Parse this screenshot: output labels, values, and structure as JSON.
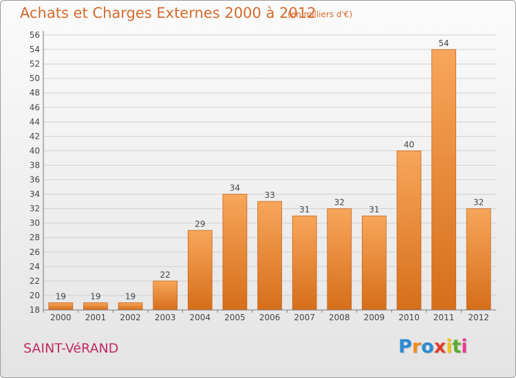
{
  "header": {
    "title": "Achats et Charges Externes 2000 à 2012",
    "subtitle": "(en milliers d'€)"
  },
  "footer": {
    "city": "SAINT-VéRAND",
    "logo": {
      "letters": [
        "P",
        "r",
        "o",
        "x",
        "i",
        "t",
        "i"
      ],
      "colors": [
        "#2a8ad4",
        "#f28c1e",
        "#2a8ad4",
        "#e43a2a",
        "#f2c018",
        "#5aae2e",
        "#e83a8c"
      ]
    }
  },
  "colors": {
    "bar_top": "#f7a65a",
    "bar_bottom": "#d66e1a",
    "bar_edge": "#c5651c",
    "title": "#d46a2c",
    "grid": "#cfcfcf",
    "city": "#c02a62"
  },
  "chart_data": {
    "type": "bar",
    "categories": [
      "2000",
      "2001",
      "2002",
      "2003",
      "2004",
      "2005",
      "2006",
      "2007",
      "2008",
      "2009",
      "2010",
      "2011",
      "2012"
    ],
    "values": [
      19,
      19,
      19,
      22,
      29,
      34,
      33,
      31,
      32,
      31,
      40,
      54,
      32
    ],
    "data_labels": [
      "19",
      "19",
      "19",
      "22",
      "29",
      "34",
      "33",
      "31",
      "32",
      "31",
      "40",
      "54",
      "32"
    ],
    "y_ticks": [
      "18",
      "20",
      "22",
      "24",
      "26",
      "28",
      "30",
      "32",
      "34",
      "36",
      "38",
      "40",
      "42",
      "44",
      "46",
      "48",
      "50",
      "52",
      "54",
      "56"
    ],
    "ylim": [
      18,
      56
    ],
    "ytick_step": 2,
    "grid": "horizontal"
  }
}
